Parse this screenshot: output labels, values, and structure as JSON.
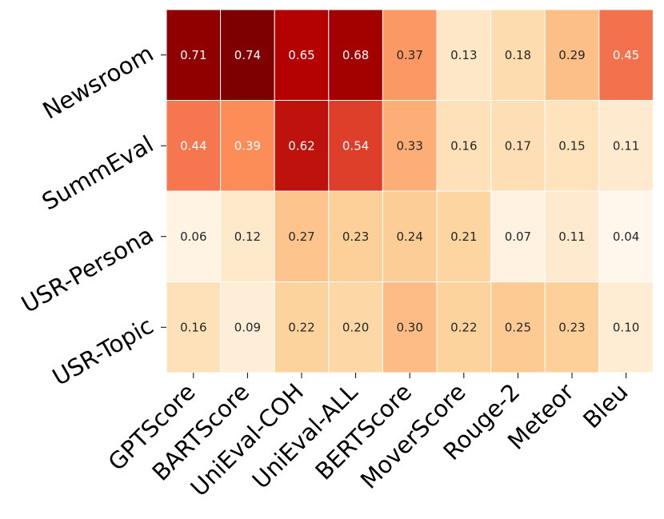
{
  "chart_data": {
    "type": "heatmap",
    "title": "",
    "xlabel": "",
    "ylabel": "",
    "colormap": "OrRd",
    "vmin": 0.04,
    "vmax": 0.74,
    "columns": [
      "GPTScore",
      "BARTScore",
      "UniEval-COH",
      "UniEval-ALL",
      "BERTScore",
      "MoverScore",
      "Rouge-2",
      "Meteor",
      "Bleu"
    ],
    "rows": [
      "Newsroom",
      "SummEval",
      "USR-Persona",
      "USR-Topic"
    ],
    "values": [
      [
        0.71,
        0.74,
        0.65,
        0.68,
        0.37,
        0.13,
        0.18,
        0.29,
        0.45
      ],
      [
        0.44,
        0.39,
        0.62,
        0.54,
        0.33,
        0.16,
        0.17,
        0.15,
        0.11
      ],
      [
        0.06,
        0.12,
        0.27,
        0.23,
        0.24,
        0.21,
        0.07,
        0.11,
        0.04
      ],
      [
        0.16,
        0.09,
        0.22,
        0.2,
        0.3,
        0.22,
        0.25,
        0.23,
        0.1
      ]
    ],
    "value_labels": [
      [
        "0.71",
        "0.74",
        "0.65",
        "0.68",
        "0.37",
        "0.13",
        "0.18",
        "0.29",
        "0.45"
      ],
      [
        "0.44",
        "0.39",
        "0.62",
        "0.54",
        "0.33",
        "0.16",
        "0.17",
        "0.15",
        "0.11"
      ],
      [
        "0.06",
        "0.12",
        "0.27",
        "0.23",
        "0.24",
        "0.21",
        "0.07",
        "0.11",
        "0.04"
      ],
      [
        "0.16",
        "0.09",
        "0.22",
        "0.20",
        "0.30",
        "0.22",
        "0.25",
        "0.23",
        "0.10"
      ]
    ],
    "grid_line_color": "#ffffff"
  }
}
